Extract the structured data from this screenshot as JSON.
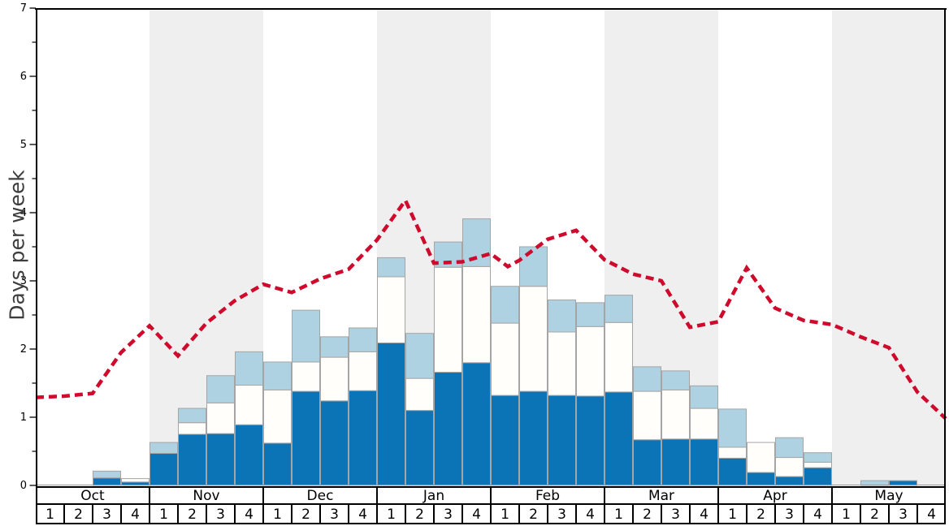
{
  "chart_data": {
    "type": "bar",
    "subtype": "stacked-weekly-bars-with-dashed-trend-line",
    "title": "",
    "ylabel": "Days per week",
    "xlabel": "",
    "ylim": [
      0,
      7
    ],
    "y_major_ticks": [
      "0",
      "1",
      "2",
      "3",
      "4",
      "5",
      "6",
      "7"
    ],
    "y_minor_tick_step": 0.5,
    "grid": "off",
    "legend_position": "none",
    "months": [
      "Oct",
      "Nov",
      "Dec",
      "Jan",
      "Feb",
      "Mar",
      "Apr",
      "May"
    ],
    "week_labels": [
      "1",
      "2",
      "3",
      "4"
    ],
    "weeks_total": 32,
    "series": [
      {
        "name": "dark-blue-segment",
        "color": "#0b74b6",
        "values": [
          0,
          0,
          0.11,
          0.05,
          0.47,
          0.75,
          0.76,
          0.89,
          0.62,
          1.38,
          1.24,
          1.39,
          2.09,
          1.1,
          1.66,
          1.8,
          1.32,
          1.38,
          1.32,
          1.31,
          1.37,
          0.67,
          0.68,
          0.68,
          0.4,
          0.19,
          0.13,
          0.26,
          0,
          0,
          0.07,
          0
        ]
      },
      {
        "name": "white-segment",
        "color": "#fffefa",
        "values": [
          0,
          0,
          0,
          0.05,
          0,
          0.17,
          0.45,
          0.58,
          0.78,
          0.43,
          0.64,
          0.57,
          0.97,
          0.47,
          1.54,
          1.41,
          1.06,
          1.54,
          0.93,
          1.02,
          1.02,
          0.71,
          0.72,
          0.45,
          0.16,
          0.44,
          0.28,
          0.08,
          0,
          0,
          0,
          0
        ]
      },
      {
        "name": "light-blue-segment",
        "color": "#aed2e2",
        "values": [
          0,
          0,
          0.1,
          0,
          0.16,
          0.21,
          0.4,
          0.49,
          0.41,
          0.76,
          0.3,
          0.35,
          0.28,
          0.66,
          0.37,
          0.7,
          0.54,
          0.58,
          0.47,
          0.35,
          0.4,
          0.36,
          0.28,
          0.33,
          0.56,
          0,
          0.29,
          0.14,
          0,
          0.07,
          0,
          0
        ]
      }
    ],
    "line": {
      "name": "red-dashed-trend-line",
      "color": "#cf0a2c",
      "dash": [
        10,
        6
      ],
      "width": 4.5,
      "points_week_units": [
        [
          0,
          1.29
        ],
        [
          1,
          1.31
        ],
        [
          2,
          1.35
        ],
        [
          3,
          1.95
        ],
        [
          4,
          2.34
        ],
        [
          5,
          1.9
        ],
        [
          6,
          2.38
        ],
        [
          7,
          2.71
        ],
        [
          8,
          2.95
        ],
        [
          9,
          2.83
        ],
        [
          10,
          3.03
        ],
        [
          11,
          3.17
        ],
        [
          12,
          3.6
        ],
        [
          13,
          4.18
        ],
        [
          14,
          3.26
        ],
        [
          15,
          3.28
        ],
        [
          16,
          3.4
        ],
        [
          16.6,
          3.21
        ],
        [
          17,
          3.3
        ],
        [
          18,
          3.61
        ],
        [
          19,
          3.74
        ],
        [
          20,
          3.31
        ],
        [
          21,
          3.1
        ],
        [
          22,
          3.0
        ],
        [
          23,
          2.32
        ],
        [
          24,
          2.4
        ],
        [
          25,
          3.19
        ],
        [
          26,
          2.6
        ],
        [
          27,
          2.42
        ],
        [
          28,
          2.36
        ],
        [
          29,
          2.18
        ],
        [
          30,
          2.02
        ],
        [
          31,
          1.37
        ],
        [
          32,
          0.98
        ]
      ]
    },
    "colors": {
      "band_gray": "#efefef",
      "band_white": "#ffffff",
      "bar_border": "#a5a5a5",
      "axis_black": "#000000",
      "baseline_gray": "#999999",
      "text_black": "#000000"
    }
  }
}
